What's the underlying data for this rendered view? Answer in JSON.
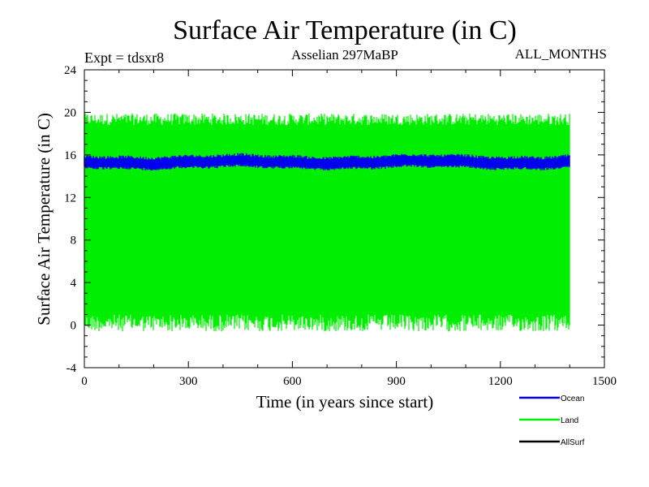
{
  "chart_data": {
    "type": "line",
    "title": "Surface Air Temperature (in C)",
    "subtitle_left": "Expt = tdsxr8",
    "subtitle_center": "Asselian 297MaBP",
    "subtitle_right": "ALL_MONTHS",
    "xlabel": "Time (in years since start)",
    "ylabel": "Surface Air Temperature (in C)",
    "xlim": [
      0,
      1500
    ],
    "ylim": [
      -4,
      24
    ],
    "x_ticks": [
      0,
      300,
      600,
      900,
      1200,
      1500
    ],
    "y_ticks": [
      -4,
      0,
      4,
      8,
      12,
      16,
      20,
      24
    ],
    "x_minor_step": 100,
    "y_minor_step": 1,
    "x_data_range": [
      0,
      1400
    ],
    "series": [
      {
        "name": "Land",
        "color": "#00ee00",
        "envelope_low": 0.3,
        "envelope_high": 19.5,
        "typical_low": 1.0,
        "typical_high": 18.8
      },
      {
        "name": "Ocean",
        "color": "#0000ee",
        "envelope_low": 14.8,
        "envelope_high": 16.0,
        "mean": 15.4
      },
      {
        "name": "AllSurf",
        "color": "#000000"
      }
    ],
    "legend": {
      "position": "bottom-right",
      "entries": [
        {
          "label": "Ocean",
          "color": "#0000ee"
        },
        {
          "label": "Land",
          "color": "#00ee00"
        },
        {
          "label": "AllSurf",
          "color": "#000000"
        }
      ]
    }
  }
}
